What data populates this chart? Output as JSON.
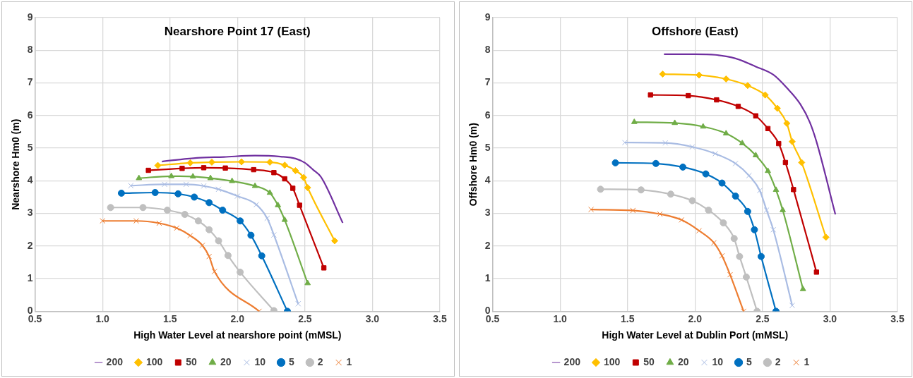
{
  "chart_data": [
    {
      "type": "line",
      "title": "Nearshore Point 17 (East)",
      "xlabel": "High Water Level at nearshore point (mMSL)",
      "ylabel": "Nearshore Hm0 (m)",
      "xlim": [
        0.5,
        3.5
      ],
      "ylim": [
        0,
        9
      ],
      "xticks": [
        {
          "value": 0.5,
          "label": "0.5"
        },
        {
          "value": 1,
          "label": "1.0"
        },
        {
          "value": 1.5,
          "label": "1.5"
        },
        {
          "value": 2,
          "label": "2.0"
        },
        {
          "value": 2.5,
          "label": "2.5"
        },
        {
          "value": 3,
          "label": "3.0"
        },
        {
          "value": 3.5,
          "label": "3.5"
        }
      ],
      "yticks": [
        0,
        1,
        2,
        3,
        4,
        5,
        6,
        7,
        8,
        9
      ],
      "grid": true,
      "legend": "bottom",
      "series": [
        {
          "name": "200",
          "color": "#7030a0",
          "marker": "none",
          "x": [
            1.44,
            1.7,
            1.9,
            2.13,
            2.32,
            2.43,
            2.5,
            2.56,
            2.62,
            2.78
          ],
          "values": [
            4.59,
            4.7,
            4.73,
            4.77,
            4.74,
            4.68,
            4.55,
            4.34,
            4.11,
            2.71
          ]
        },
        {
          "name": "100",
          "color": "#ffc000",
          "marker": "diamond",
          "x": [
            1.41,
            1.65,
            1.81,
            2.03,
            2.24,
            2.35,
            2.43,
            2.49,
            2.52,
            2.72
          ],
          "values": [
            4.47,
            4.55,
            4.57,
            4.58,
            4.57,
            4.48,
            4.31,
            4.1,
            3.79,
            2.16
          ]
        },
        {
          "name": "50",
          "color": "#c00000",
          "marker": "square",
          "x": [
            1.34,
            1.59,
            1.75,
            1.91,
            2.12,
            2.27,
            2.35,
            2.41,
            2.46,
            2.64
          ],
          "values": [
            4.32,
            4.38,
            4.4,
            4.39,
            4.34,
            4.25,
            4.06,
            3.77,
            3.25,
            1.33
          ]
        },
        {
          "name": "20",
          "color": "#70ad47",
          "marker": "triangle",
          "x": [
            1.27,
            1.51,
            1.67,
            1.8,
            1.96,
            2.13,
            2.24,
            2.3,
            2.35,
            2.52
          ],
          "values": [
            4.08,
            4.14,
            4.13,
            4.08,
            3.99,
            3.84,
            3.63,
            3.25,
            2.8,
            0.86
          ]
        },
        {
          "name": "10",
          "color": "#a9bce3",
          "marker": "cross",
          "x": [
            1.21,
            1.46,
            1.62,
            1.75,
            1.86,
            2.0,
            2.14,
            2.22,
            2.27,
            2.45
          ],
          "values": [
            3.85,
            3.89,
            3.89,
            3.84,
            3.74,
            3.53,
            3.27,
            2.85,
            2.34,
            0.23
          ]
        },
        {
          "name": "5",
          "color": "#0070c0",
          "marker": "circle",
          "x": [
            1.14,
            1.39,
            1.56,
            1.68,
            1.79,
            1.89,
            2.02,
            2.1,
            2.18,
            2.37
          ],
          "values": [
            3.62,
            3.64,
            3.6,
            3.5,
            3.33,
            3.1,
            2.77,
            2.33,
            1.7,
            0
          ]
        },
        {
          "name": "2",
          "color": "#bfbfbf",
          "marker": "circle",
          "x": [
            1.06,
            1.3,
            1.48,
            1.61,
            1.71,
            1.79,
            1.86,
            1.93,
            2.02,
            2.27
          ],
          "values": [
            3.18,
            3.18,
            3.1,
            2.97,
            2.77,
            2.5,
            2.16,
            1.71,
            1.2,
            0.02
          ]
        },
        {
          "name": "1",
          "color": "#ed7d31",
          "marker": "cross",
          "x": [
            1.0,
            1.25,
            1.42,
            1.55,
            1.65,
            1.74,
            1.79,
            1.83,
            2.16
          ],
          "values": [
            2.77,
            2.77,
            2.7,
            2.55,
            2.32,
            2.02,
            1.68,
            1.22,
            0
          ]
        }
      ]
    },
    {
      "type": "line",
      "title": "Offshore (East)",
      "xlabel": "High Water Level at Dublin Port (mMSL)",
      "ylabel": "Offshore Hm0 (m)",
      "xlim": [
        0.5,
        3.5
      ],
      "ylim": [
        0,
        9
      ],
      "xticks": [
        {
          "value": 0.5,
          "label": "0.5"
        },
        {
          "value": 1,
          "label": "1.0"
        },
        {
          "value": 1.5,
          "label": "1.5"
        },
        {
          "value": 2,
          "label": "2.0"
        },
        {
          "value": 2.5,
          "label": "2.5"
        },
        {
          "value": 3,
          "label": "3.0"
        },
        {
          "value": 3.5,
          "label": "3.5"
        }
      ],
      "yticks": [
        0,
        1,
        2,
        3,
        4,
        5,
        6,
        7,
        8,
        9
      ],
      "grid": true,
      "legend": "bottom",
      "series": [
        {
          "name": "200",
          "color": "#7030a0",
          "marker": "none",
          "x": [
            1.77,
            2.0,
            2.15,
            2.3,
            2.45,
            2.58,
            2.68,
            2.78,
            2.85,
            2.9,
            3.04
          ],
          "values": [
            7.88,
            7.88,
            7.86,
            7.75,
            7.5,
            7.25,
            6.85,
            6.35,
            5.8,
            5.2,
            2.97
          ]
        },
        {
          "name": "100",
          "color": "#ffc000",
          "marker": "diamond",
          "x": [
            1.76,
            2.03,
            2.23,
            2.39,
            2.52,
            2.61,
            2.68,
            2.72,
            2.79,
            2.97
          ],
          "values": [
            7.27,
            7.24,
            7.12,
            6.92,
            6.63,
            6.22,
            5.76,
            5.2,
            4.56,
            2.27
          ]
        },
        {
          "name": "50",
          "color": "#c00000",
          "marker": "square",
          "x": [
            1.67,
            1.95,
            2.16,
            2.32,
            2.45,
            2.54,
            2.62,
            2.67,
            2.73,
            2.9
          ],
          "values": [
            6.63,
            6.61,
            6.48,
            6.28,
            5.99,
            5.6,
            5.14,
            4.56,
            3.73,
            1.2
          ]
        },
        {
          "name": "20",
          "color": "#70ad47",
          "marker": "triangle",
          "x": [
            1.55,
            1.85,
            2.06,
            2.23,
            2.35,
            2.45,
            2.54,
            2.6,
            2.65,
            2.8
          ],
          "values": [
            5.8,
            5.77,
            5.66,
            5.45,
            5.15,
            4.78,
            4.3,
            3.72,
            3.1,
            0.68
          ]
        },
        {
          "name": "10",
          "color": "#a9bce3",
          "marker": "cross",
          "x": [
            1.48,
            1.78,
            1.98,
            2.15,
            2.3,
            2.4,
            2.48,
            2.53,
            2.58,
            2.72
          ],
          "values": [
            5.17,
            5.16,
            5.04,
            4.83,
            4.53,
            4.16,
            3.7,
            3.1,
            2.5,
            0.18
          ]
        },
        {
          "name": "5",
          "color": "#0070c0",
          "marker": "circle",
          "x": [
            1.41,
            1.71,
            1.91,
            2.08,
            2.2,
            2.3,
            2.39,
            2.44,
            2.49,
            2.6
          ],
          "values": [
            4.55,
            4.53,
            4.42,
            4.21,
            3.93,
            3.53,
            3.06,
            2.5,
            1.68,
            0
          ]
        },
        {
          "name": "2",
          "color": "#bfbfbf",
          "marker": "circle",
          "x": [
            1.3,
            1.6,
            1.82,
            1.98,
            2.1,
            2.21,
            2.29,
            2.33,
            2.38,
            2.46
          ],
          "values": [
            3.74,
            3.72,
            3.59,
            3.39,
            3.1,
            2.71,
            2.23,
            1.68,
            1.05,
            0
          ]
        },
        {
          "name": "1",
          "color": "#ed7d31",
          "marker": "cross",
          "x": [
            1.23,
            1.54,
            1.74,
            1.9,
            2.03,
            2.14,
            2.2,
            2.26,
            2.36
          ],
          "values": [
            3.12,
            3.09,
            2.98,
            2.8,
            2.47,
            2.1,
            1.7,
            1.12,
            0
          ]
        }
      ]
    }
  ]
}
